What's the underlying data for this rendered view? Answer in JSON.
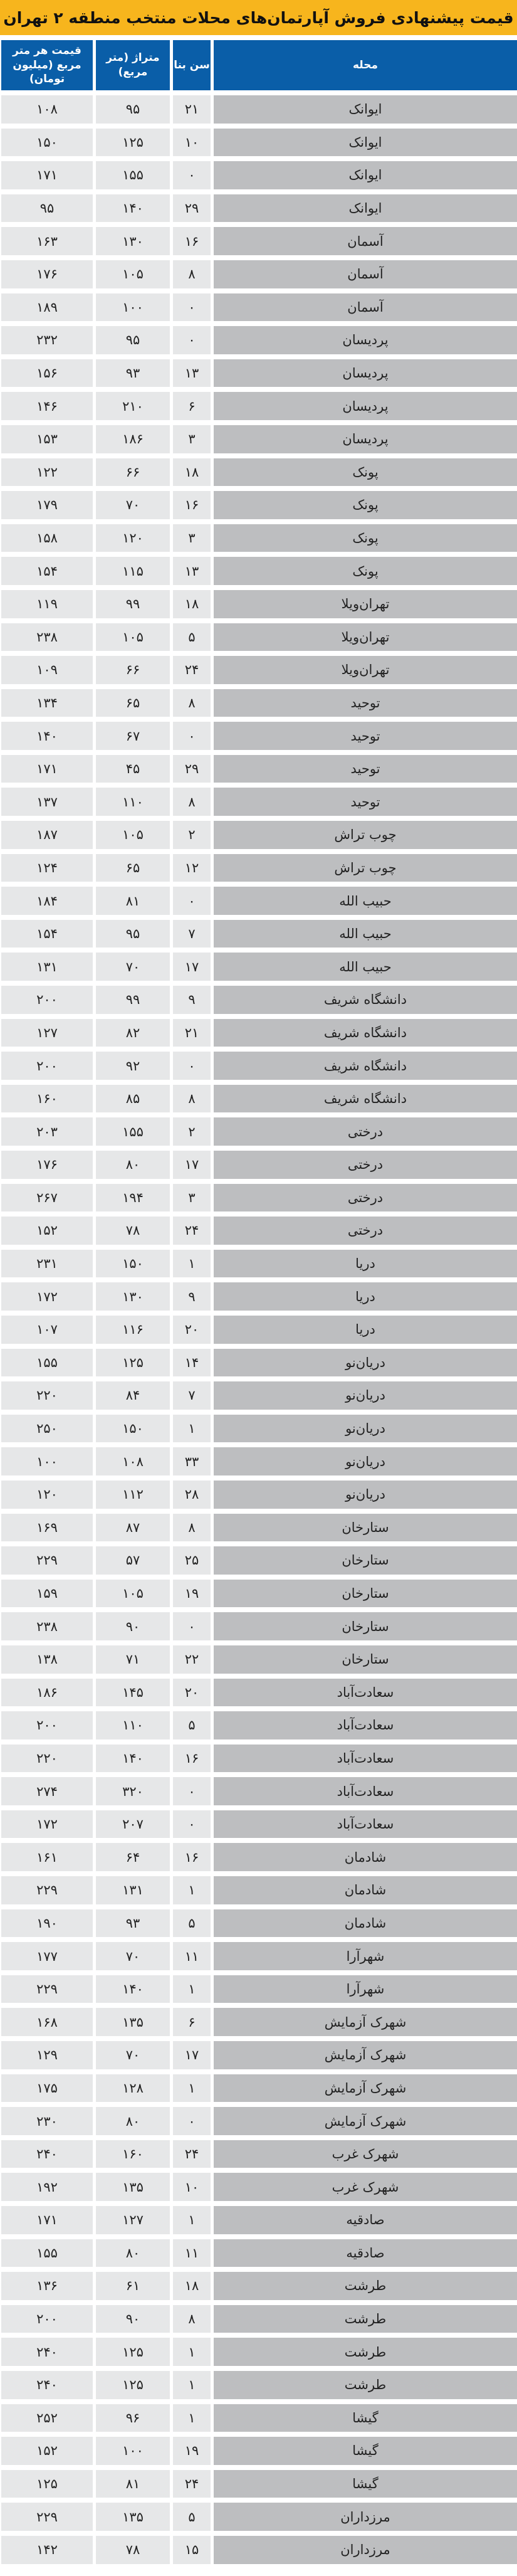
{
  "title": "قیمت پیشنهادی فروش آپارتمان‌های محلات منتخب منطقه ۲ تهران",
  "colors": {
    "title_bg": "#f7b51d",
    "header_bg": "#0a5ea8",
    "name_cell_bg": "#bdbec0",
    "cell_bg": "#e6e7e8"
  },
  "headers": {
    "name": "محله",
    "age": "سن بنا",
    "area": "متراژ (متر مربع)",
    "price": "قیمت هر متر مربع (میلیون تومان)"
  },
  "rows": [
    [
      "ایوانک",
      "۲۱",
      "۹۵",
      "۱۰۸"
    ],
    [
      "ایوانک",
      "۱۰",
      "۱۲۵",
      "۱۵۰"
    ],
    [
      "ایوانک",
      "۰",
      "۱۵۵",
      "۱۷۱"
    ],
    [
      "ایوانک",
      "۲۹",
      "۱۴۰",
      "۹۵"
    ],
    [
      "آسمان",
      "۱۶",
      "۱۳۰",
      "۱۶۳"
    ],
    [
      "آسمان",
      "۸",
      "۱۰۵",
      "۱۷۶"
    ],
    [
      "آسمان",
      "۰",
      "۱۰۰",
      "۱۸۹"
    ],
    [
      "پردیسان",
      "۰",
      "۹۵",
      "۲۳۲"
    ],
    [
      "پردیسان",
      "۱۳",
      "۹۳",
      "۱۵۶"
    ],
    [
      "پردیسان",
      "۶",
      "۲۱۰",
      "۱۴۶"
    ],
    [
      "پردیسان",
      "۳",
      "۱۸۶",
      "۱۵۳"
    ],
    [
      "پونک",
      "۱۸",
      "۶۶",
      "۱۲۲"
    ],
    [
      "پونک",
      "۱۶",
      "۷۰",
      "۱۷۹"
    ],
    [
      "پونک",
      "۳",
      "۱۲۰",
      "۱۵۸"
    ],
    [
      "پونک",
      "۱۳",
      "۱۱۵",
      "۱۵۴"
    ],
    [
      "تهران‌ویلا",
      "۱۸",
      "۹۹",
      "۱۱۹"
    ],
    [
      "تهران‌ویلا",
      "۵",
      "۱۰۵",
      "۲۳۸"
    ],
    [
      "تهران‌ویلا",
      "۲۴",
      "۶۶",
      "۱۰۹"
    ],
    [
      "توحید",
      "۸",
      "۶۵",
      "۱۳۴"
    ],
    [
      "توحید",
      "۰",
      "۶۷",
      "۱۴۰"
    ],
    [
      "توحید",
      "۲۹",
      "۴۵",
      "۱۷۱"
    ],
    [
      "توحید",
      "۸",
      "۱۱۰",
      "۱۳۷"
    ],
    [
      "چوب تراش",
      "۲",
      "۱۰۵",
      "۱۸۷"
    ],
    [
      "چوب تراش",
      "۱۲",
      "۶۵",
      "۱۲۴"
    ],
    [
      "حبیب الله",
      "۰",
      "۸۱",
      "۱۸۴"
    ],
    [
      "حبیب الله",
      "۷",
      "۹۵",
      "۱۵۴"
    ],
    [
      "حبیب الله",
      "۱۷",
      "۷۰",
      "۱۳۱"
    ],
    [
      "دانشگاه شریف",
      "۹",
      "۹۹",
      "۲۰۰"
    ],
    [
      "دانشگاه شریف",
      "۲۱",
      "۸۲",
      "۱۲۷"
    ],
    [
      "دانشگاه شریف",
      "۰",
      "۹۲",
      "۲۰۰"
    ],
    [
      "دانشگاه شریف",
      "۸",
      "۸۵",
      "۱۶۰"
    ],
    [
      "درختی",
      "۲",
      "۱۵۵",
      "۲۰۳"
    ],
    [
      "درختی",
      "۱۷",
      "۸۰",
      "۱۷۶"
    ],
    [
      "درختی",
      "۳",
      "۱۹۴",
      "۲۶۷"
    ],
    [
      "درختی",
      "۲۴",
      "۷۸",
      "۱۵۲"
    ],
    [
      "دریا",
      "۱",
      "۱۵۰",
      "۲۳۱"
    ],
    [
      "دریا",
      "۹",
      "۱۳۰",
      "۱۷۲"
    ],
    [
      "دریا",
      "۲۰",
      "۱۱۶",
      "۱۰۷"
    ],
    [
      "دریان‌نو",
      "۱۴",
      "۱۲۵",
      "۱۵۵"
    ],
    [
      "دریان‌نو",
      "۷",
      "۸۴",
      "۲۲۰"
    ],
    [
      "دریان‌نو",
      "۱",
      "۱۵۰",
      "۲۵۰"
    ],
    [
      "دریان‌نو",
      "۳۳",
      "۱۰۸",
      "۱۰۰"
    ],
    [
      "دریان‌نو",
      "۲۸",
      "۱۱۲",
      "۱۲۰"
    ],
    [
      "ستارخان",
      "۸",
      "۸۷",
      "۱۶۹"
    ],
    [
      "ستارخان",
      "۲۵",
      "۵۷",
      "۲۲۹"
    ],
    [
      "ستارخان",
      "۱۹",
      "۱۰۵",
      "۱۵۹"
    ],
    [
      "ستارخان",
      "۰",
      "۹۰",
      "۲۳۸"
    ],
    [
      "ستارخان",
      "۲۲",
      "۷۱",
      "۱۳۸"
    ],
    [
      "سعادت‌آباد",
      "۲۰",
      "۱۴۵",
      "۱۸۶"
    ],
    [
      "سعادت‌آباد",
      "۵",
      "۱۱۰",
      "۲۰۰"
    ],
    [
      "سعادت‌آباد",
      "۱۶",
      "۱۴۰",
      "۲۲۰"
    ],
    [
      "سعادت‌آباد",
      "۰",
      "۳۲۰",
      "۲۷۴"
    ],
    [
      "سعادت‌آباد",
      "۰",
      "۲۰۷",
      "۱۷۲"
    ],
    [
      "شادمان",
      "۱۶",
      "۶۴",
      "۱۶۱"
    ],
    [
      "شادمان",
      "۱",
      "۱۳۱",
      "۲۲۹"
    ],
    [
      "شادمان",
      "۵",
      "۹۳",
      "۱۹۰"
    ],
    [
      "شهرآرا",
      "۱۱",
      "۷۰",
      "۱۷۷"
    ],
    [
      "شهرآرا",
      "۱",
      "۱۴۰",
      "۲۲۹"
    ],
    [
      "شهرک آزمایش",
      "۶",
      "۱۳۵",
      "۱۶۸"
    ],
    [
      "شهرک آزمایش",
      "۱۷",
      "۷۰",
      "۱۲۹"
    ],
    [
      "شهرک آزمایش",
      "۱",
      "۱۲۸",
      "۱۷۵"
    ],
    [
      "شهرک آزمایش",
      "۰",
      "۸۰",
      "۲۳۰"
    ],
    [
      "شهرک غرب",
      "۲۴",
      "۱۶۰",
      "۲۴۰"
    ],
    [
      "شهرک غرب",
      "۱۰",
      "۱۳۵",
      "۱۹۲"
    ],
    [
      "صادقیه",
      "۱",
      "۱۲۷",
      "۱۷۱"
    ],
    [
      "صادقیه",
      "۱۱",
      "۸۰",
      "۱۵۵"
    ],
    [
      "طرشت",
      "۱۸",
      "۶۱",
      "۱۳۶"
    ],
    [
      "طرشت",
      "۸",
      "۹۰",
      "۲۰۰"
    ],
    [
      "طرشت",
      "۱",
      "۱۲۵",
      "۲۴۰"
    ],
    [
      "طرشت",
      "۱",
      "۱۲۵",
      "۲۴۰"
    ],
    [
      "گیشا",
      "۱",
      "۹۶",
      "۲۵۲"
    ],
    [
      "گیشا",
      "۱۹",
      "۱۰۰",
      "۱۵۲"
    ],
    [
      "گیشا",
      "۲۴",
      "۸۱",
      "۱۲۵"
    ],
    [
      "مرزداران",
      "۵",
      "۱۳۵",
      "۲۲۹"
    ],
    [
      "مرزداران",
      "۱۵",
      "۷۸",
      "۱۴۲"
    ]
  ]
}
